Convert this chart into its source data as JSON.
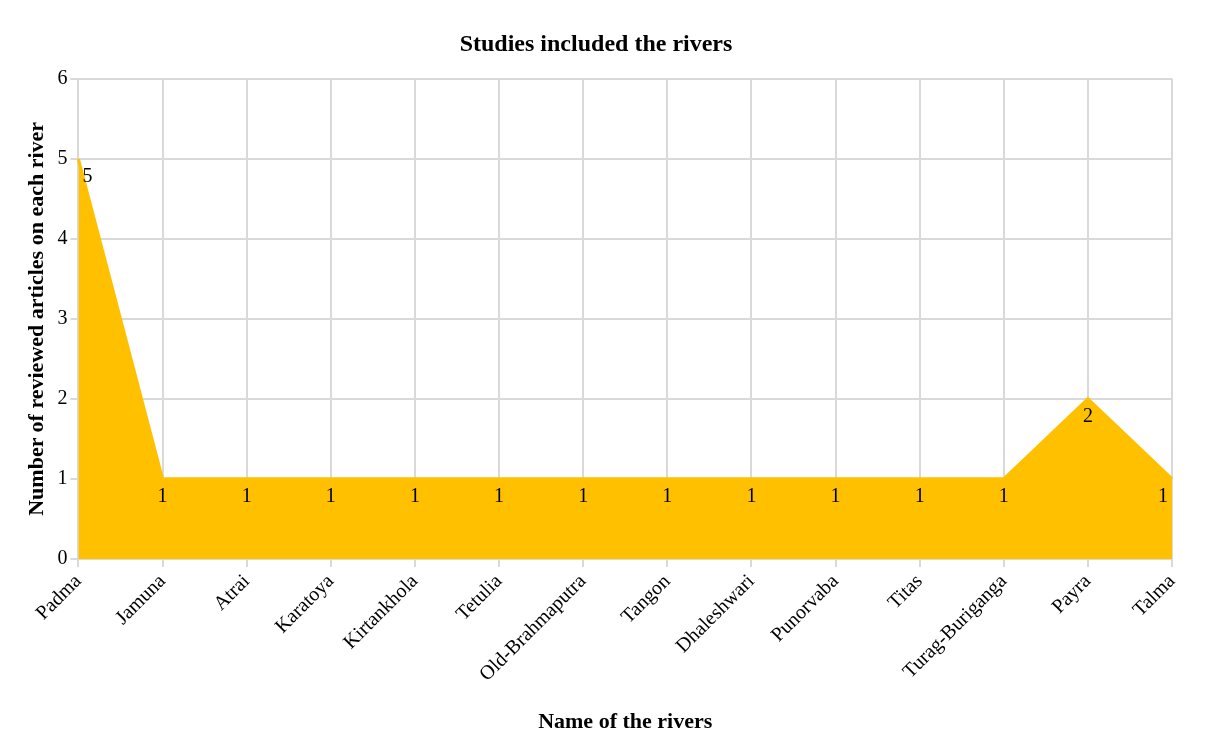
{
  "chart_data": {
    "type": "area",
    "title": "Studies included the rivers",
    "xlabel": "Name of the rivers",
    "ylabel": "Number of reviewed articles on each river",
    "categories": [
      "Padma",
      "Jamuna",
      "Atrai",
      "Karatoya",
      "Kirtankhola",
      "Tetulia",
      "Old-Brahmaputra",
      "Tangon",
      "Dhaleshwari",
      "Punorvaba",
      "Titas",
      "Turag-Buriganga",
      "Payra",
      "Talma"
    ],
    "values": [
      5,
      1,
      1,
      1,
      1,
      1,
      1,
      1,
      1,
      1,
      1,
      1,
      2,
      1
    ],
    "color": "#ffc000",
    "ylim": [
      0,
      6
    ],
    "yticks": [
      0,
      1,
      2,
      3,
      4,
      5,
      6
    ],
    "grid": true,
    "legend": false,
    "data_labels": true
  }
}
